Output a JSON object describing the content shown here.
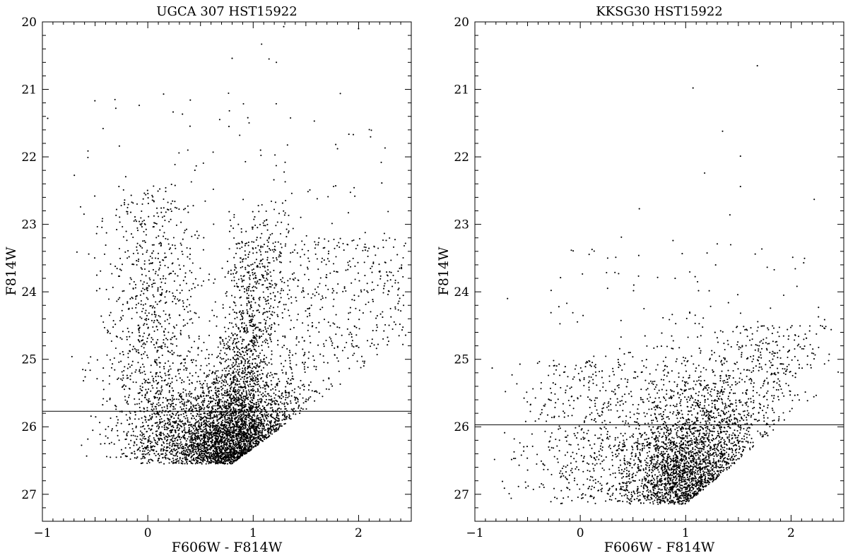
{
  "chart_data": [
    {
      "type": "scatter",
      "title": "UGCA 307    HST15922",
      "xlabel": "F606W - F814W",
      "ylabel": "F814W",
      "xlim": [
        -1.0,
        2.5
      ],
      "ylim": [
        27.4,
        20.0
      ],
      "y_inverted": true,
      "xticks": [
        -1,
        0,
        1,
        2
      ],
      "yticks": [
        20,
        21,
        22,
        23,
        24,
        25,
        26,
        27
      ],
      "hline": 25.77,
      "grid": false,
      "color": "#000000",
      "n_points": 6500,
      "features": {
        "bright_limit": 20.3,
        "faint_limit": 26.55,
        "red_giant_branch_tip": 22.5,
        "red_giant_branch_color": 1.12,
        "blue_plume_color": 0.05,
        "completeness_slope": "diagonal faint edge from (0.8, 26.55) to (2.5, 24.6)"
      },
      "points": [
        [
          -0.95,
          21.43
        ],
        [
          1.08,
          20.33
        ],
        [
          1.15,
          20.55
        ],
        [
          0.8,
          20.54
        ],
        [
          1.22,
          20.6
        ],
        [
          1.29,
          20.07
        ],
        [
          2.0,
          20.1
        ],
        [
          0.15,
          21.07
        ],
        [
          0.77,
          21.55
        ],
        [
          1.58,
          21.47
        ],
        [
          -0.27,
          21.84
        ],
        [
          0.38,
          21.9
        ],
        [
          0.62,
          21.93
        ],
        [
          1.8,
          21.88
        ],
        [
          1.71,
          22.59
        ],
        [
          2.28,
          22.81
        ],
        [
          -0.56,
          23.44
        ],
        [
          2.35,
          23.83
        ],
        [
          -0.72,
          24.96
        ],
        [
          2.42,
          24.78
        ]
      ]
    },
    {
      "type": "scatter",
      "title": "KKSG30    HST15922",
      "xlabel": "F606W - F814W",
      "ylabel": "F814W",
      "xlim": [
        -1.0,
        2.5
      ],
      "ylim": [
        27.4,
        20.0
      ],
      "y_inverted": true,
      "xticks": [
        -1,
        0,
        1,
        2
      ],
      "yticks": [
        20,
        21,
        22,
        23,
        24,
        25,
        26,
        27
      ],
      "hline": 25.97,
      "grid": false,
      "color": "#000000",
      "n_points": 4200,
      "features": {
        "bright_limit": 20.65,
        "faint_limit": 27.15,
        "main_clump_color": 1.0,
        "main_clump_magnitude": 26.7,
        "completeness_slope": "diagonal faint edge from (1.0, 27.15) to (2.5, 25.2)"
      },
      "points": [
        [
          1.68,
          20.65
        ],
        [
          1.07,
          20.98
        ],
        [
          1.35,
          21.62
        ],
        [
          1.18,
          22.24
        ],
        [
          1.52,
          21.99
        ],
        [
          1.52,
          22.44
        ],
        [
          0.56,
          22.77
        ],
        [
          1.42,
          22.86
        ],
        [
          2.22,
          22.63
        ],
        [
          0.39,
          23.19
        ],
        [
          0.88,
          23.24
        ],
        [
          1.3,
          23.29
        ],
        [
          1.66,
          23.44
        ],
        [
          2.12,
          23.57
        ],
        [
          -0.69,
          24.1
        ],
        [
          0.26,
          23.5
        ],
        [
          0.9,
          23.8
        ],
        [
          -0.72,
          26.91
        ],
        [
          -0.52,
          26.82
        ],
        [
          -0.3,
          26.3
        ]
      ]
    }
  ]
}
